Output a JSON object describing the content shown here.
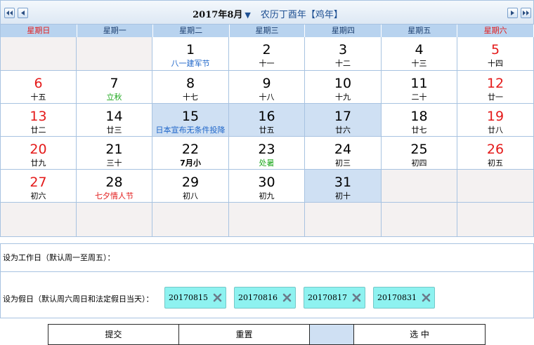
{
  "header": {
    "year_month": "2017年8月",
    "caret": "▼",
    "lunar_year": "农历丁酉年【鸡年】"
  },
  "weekdays": [
    "星期日",
    "星期一",
    "星期二",
    "星期三",
    "星期四",
    "星期五",
    "星期六"
  ],
  "weeks": [
    [
      {
        "empty": true
      },
      {
        "empty": true
      },
      {
        "day": "1",
        "sub": "八一建军节",
        "subStyle": "blue"
      },
      {
        "day": "2",
        "sub": "十一"
      },
      {
        "day": "3",
        "sub": "十二"
      },
      {
        "day": "4",
        "sub": "十三"
      },
      {
        "day": "5",
        "sub": "十四",
        "red": true
      }
    ],
    [
      {
        "day": "6",
        "sub": "十五",
        "red": true
      },
      {
        "day": "7",
        "sub": "立秋",
        "subStyle": "green"
      },
      {
        "day": "8",
        "sub": "十七"
      },
      {
        "day": "9",
        "sub": "十八"
      },
      {
        "day": "10",
        "sub": "十九"
      },
      {
        "day": "11",
        "sub": "二十"
      },
      {
        "day": "12",
        "sub": "廿一",
        "red": true
      }
    ],
    [
      {
        "day": "13",
        "sub": "廿二",
        "red": true
      },
      {
        "day": "14",
        "sub": "廿三"
      },
      {
        "day": "15",
        "sub": "日本宣布无条件投降",
        "subStyle": "blue",
        "selected": true
      },
      {
        "day": "16",
        "sub": "廿五",
        "selected": true
      },
      {
        "day": "17",
        "sub": "廿六",
        "selected": true
      },
      {
        "day": "18",
        "sub": "廿七"
      },
      {
        "day": "19",
        "sub": "廿八",
        "red": true
      }
    ],
    [
      {
        "day": "20",
        "sub": "廿九",
        "red": true
      },
      {
        "day": "21",
        "sub": "三十"
      },
      {
        "day": "22",
        "sub": "7月小",
        "subStyle": "bold"
      },
      {
        "day": "23",
        "sub": "处暑",
        "subStyle": "green"
      },
      {
        "day": "24",
        "sub": "初三"
      },
      {
        "day": "25",
        "sub": "初四"
      },
      {
        "day": "26",
        "sub": "初五",
        "red": true
      }
    ],
    [
      {
        "day": "27",
        "sub": "初六",
        "red": true
      },
      {
        "day": "28",
        "sub": "七夕情人节",
        "subStyle": "red"
      },
      {
        "day": "29",
        "sub": "初八"
      },
      {
        "day": "30",
        "sub": "初九"
      },
      {
        "day": "31",
        "sub": "初十",
        "selected": true
      },
      {
        "empty": true
      },
      {
        "empty": true
      }
    ],
    [
      {
        "empty": true
      },
      {
        "empty": true
      },
      {
        "empty": true
      },
      {
        "empty": true
      },
      {
        "empty": true
      },
      {
        "empty": true
      },
      {
        "empty": true
      }
    ]
  ],
  "settings": {
    "workday_label": "设为工作日（默认周一至周五）：",
    "holiday_label": "设为假日（默认周六周日和法定假日当天）：",
    "holidays": [
      "20170815",
      "20170816",
      "20170817",
      "20170831"
    ]
  },
  "buttons": {
    "submit": "提交",
    "reset": "重置",
    "blank": "",
    "select": "选 中"
  },
  "icons": {
    "prev_year": "double-chevron-left-icon",
    "prev_month": "chevron-left-icon",
    "next_month": "chevron-right-icon",
    "next_year": "double-chevron-right-icon",
    "remove": "close-icon"
  },
  "colors": {
    "weekend_red": "#e21a1a",
    "holiday_blue": "#1f66c9",
    "solar_term_green": "#1ea81e",
    "selected_bg": "#cfe0f3",
    "chip_bg": "#8ef2f0",
    "weekday_bar": "#b8d3ef"
  }
}
